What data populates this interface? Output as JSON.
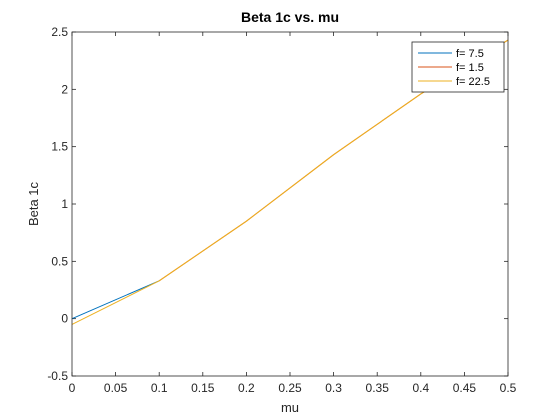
{
  "chart_data": {
    "type": "line",
    "title": "Beta 1c vs. mu",
    "xlabel": "mu",
    "ylabel": "Beta 1c",
    "xlim": [
      0,
      0.5
    ],
    "ylim": [
      -0.5,
      2.5
    ],
    "xticks": [
      "0",
      "0.05",
      "0.1",
      "0.15",
      "0.2",
      "0.25",
      "0.3",
      "0.35",
      "0.4",
      "0.45",
      "0.5"
    ],
    "yticks": [
      "-0.5",
      "0",
      "0.5",
      "1",
      "1.5",
      "2",
      "2.5"
    ],
    "grid": false,
    "legend_position": "top-right",
    "series": [
      {
        "name": "f= 7.5",
        "color": "#0072BD",
        "x": [
          0,
          0.1
        ],
        "y": [
          0.0,
          0.33
        ]
      },
      {
        "name": "f= 1.5",
        "color": "#D95319",
        "x": [
          0.1,
          0.2,
          0.3,
          0.4,
          0.5
        ],
        "y": [
          0.33,
          0.85,
          1.43,
          1.96,
          2.43
        ]
      },
      {
        "name": "f= 22.5",
        "color": "#EDB120",
        "x": [
          0,
          0.1,
          0.2,
          0.3,
          0.4,
          0.5
        ],
        "y": [
          -0.05,
          0.33,
          0.85,
          1.43,
          1.96,
          2.43
        ]
      }
    ]
  }
}
